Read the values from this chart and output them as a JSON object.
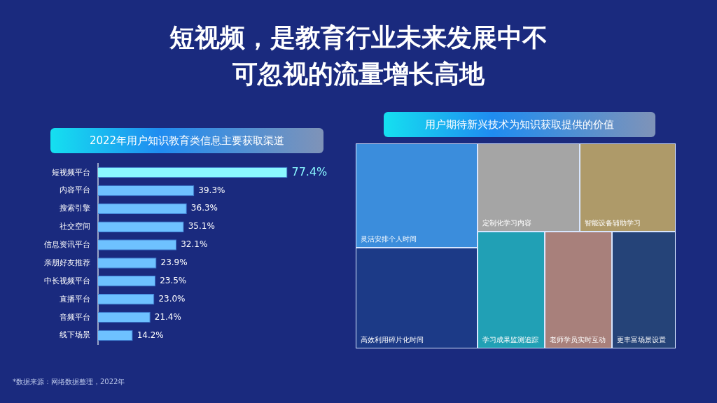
{
  "chart_data": [
    {
      "type": "bar",
      "orientation": "horizontal",
      "title": "短视频，是教育行业未来发展中不可忽视的流量增长高地",
      "subtitle": "2022年用户知识教育类信息主要获取渠道",
      "categories": [
        "短视频平台",
        "内容平台",
        "搜索引擎",
        "社交空间",
        "信息资讯平台",
        "亲朋好友推荐",
        "中长视频平台",
        "直播平台",
        "音频平台",
        "线下场景"
      ],
      "values": [
        77.4,
        39.3,
        36.3,
        35.1,
        32.1,
        23.9,
        23.5,
        23.0,
        21.4,
        14.2
      ],
      "value_labels": [
        "77.4%",
        "39.3%",
        "36.3%",
        "35.1%",
        "32.1%",
        "23.9%",
        "23.5%",
        "23.0%",
        "21.4%",
        "14.2%"
      ],
      "colors": [
        "#8af8ff",
        "#6ec1ff",
        "#6ec1ff",
        "#6ec1ff",
        "#6ec1ff",
        "#6ec1ff",
        "#6ec1ff",
        "#6ec1ff",
        "#6ec1ff",
        "#6ec1ff"
      ],
      "tick_labels": "y",
      "legend": false,
      "annotations": [
        "*数据来源：网络数据整理，2022年"
      ]
    },
    {
      "type": "other",
      "title": "用户期待新兴技术为知识获取提供的价值",
      "categories": [
        "灵活安排个人时间",
        "高效利用碎片化时间",
        "定制化学习内容",
        "智能设备辅助学习",
        "学习成果监测追踪",
        "老师学员实时互动",
        "更丰富场景设置"
      ],
      "colors": [
        "#3b8ddc",
        "#1c3a87",
        "#a5a5a5",
        "#ae9a69",
        "#21a0b5",
        "#a8807b",
        "#254378"
      ]
    }
  ]
}
